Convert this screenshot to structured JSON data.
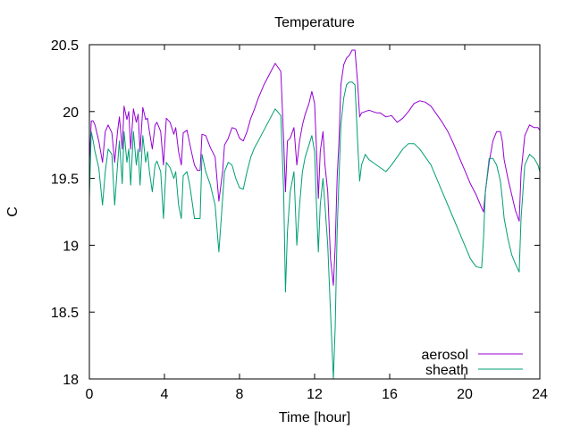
{
  "chart_data": {
    "type": "line",
    "title": "Temperature",
    "xlabel": "Time [hour]",
    "ylabel": "C",
    "xlim": [
      0,
      24
    ],
    "ylim": [
      18,
      20.5
    ],
    "xticks": [
      0,
      4,
      8,
      12,
      16,
      20,
      24
    ],
    "xtick_labels": [
      "0",
      "4",
      "8",
      "12",
      "16",
      "20",
      "24"
    ],
    "yticks": [
      18,
      18.5,
      19,
      19.5,
      20,
      20.5
    ],
    "ytick_labels": [
      "18",
      "18.5",
      "19",
      "19.5",
      "20",
      "20.5"
    ],
    "grid": false,
    "legend_position": "bottom-right",
    "series": [
      {
        "name": "aerosol",
        "color": "#9400d3",
        "x": [
          0,
          0.1,
          0.2,
          0.3,
          0.5,
          0.7,
          0.85,
          1.0,
          1.2,
          1.35,
          1.5,
          1.6,
          1.75,
          1.85,
          2.0,
          2.1,
          2.2,
          2.35,
          2.5,
          2.6,
          2.7,
          2.85,
          3.0,
          3.1,
          3.2,
          3.35,
          3.5,
          3.6,
          3.8,
          3.95,
          4.1,
          4.3,
          4.5,
          4.6,
          4.75,
          4.9,
          5.0,
          5.2,
          5.35,
          5.5,
          5.6,
          5.75,
          5.9,
          6.0,
          6.2,
          6.45,
          6.7,
          6.9,
          7.1,
          7.2,
          7.4,
          7.6,
          7.8,
          8.0,
          8.2,
          8.4,
          8.6,
          8.8,
          9.0,
          9.3,
          9.6,
          9.9,
          10.2,
          10.35,
          10.45,
          10.55,
          10.7,
          10.9,
          11.05,
          11.2,
          11.35,
          11.5,
          11.7,
          11.85,
          12.0,
          12.1,
          12.2,
          12.3,
          12.45,
          12.55,
          12.7,
          12.85,
          13.0,
          13.1,
          13.2,
          13.3,
          13.4,
          13.55,
          13.7,
          13.85,
          14.0,
          14.15,
          14.3,
          14.4,
          14.5,
          14.7,
          14.9,
          15.1,
          15.3,
          15.5,
          15.8,
          16.1,
          16.4,
          16.7,
          17.0,
          17.3,
          17.6,
          17.9,
          18.2,
          18.5,
          18.8,
          19.1,
          19.4,
          19.7,
          20.0,
          20.3,
          20.6,
          20.9,
          21.0,
          21.1,
          21.3,
          21.5,
          21.7,
          21.9,
          22.0,
          22.1,
          22.3,
          22.5,
          22.7,
          22.9,
          23.0,
          23.2,
          23.45,
          23.7,
          23.9,
          24.0
        ],
        "values": [
          19.6,
          19.93,
          19.93,
          19.9,
          19.78,
          19.62,
          19.85,
          19.9,
          19.84,
          19.62,
          19.85,
          19.96,
          19.72,
          20.04,
          19.94,
          20.0,
          19.72,
          20.02,
          19.92,
          19.98,
          19.7,
          20.03,
          19.94,
          19.95,
          19.85,
          19.72,
          19.9,
          19.92,
          19.85,
          19.6,
          19.95,
          19.92,
          19.83,
          19.88,
          19.7,
          19.6,
          19.84,
          19.86,
          19.76,
          19.66,
          19.6,
          19.56,
          19.56,
          19.83,
          19.82,
          19.73,
          19.66,
          19.33,
          19.55,
          19.75,
          19.8,
          19.88,
          19.87,
          19.8,
          19.78,
          19.85,
          19.95,
          20.02,
          20.1,
          20.2,
          20.28,
          20.36,
          20.3,
          19.78,
          19.4,
          19.78,
          19.8,
          19.88,
          19.6,
          19.78,
          19.9,
          19.98,
          20.06,
          20.15,
          20.06,
          19.72,
          19.35,
          19.7,
          19.85,
          19.6,
          19.4,
          18.9,
          18.7,
          19.0,
          19.5,
          19.78,
          20.2,
          20.35,
          20.4,
          20.42,
          20.46,
          20.46,
          20.2,
          19.96,
          19.99,
          20.0,
          20.01,
          20.0,
          19.99,
          19.99,
          19.96,
          19.97,
          19.92,
          19.95,
          20.0,
          20.06,
          20.08,
          20.07,
          20.04,
          19.98,
          19.92,
          19.85,
          19.76,
          19.66,
          19.56,
          19.46,
          19.38,
          19.28,
          19.25,
          19.4,
          19.62,
          19.78,
          19.85,
          19.85,
          19.78,
          19.64,
          19.5,
          19.38,
          19.26,
          19.18,
          19.54,
          19.82,
          19.9,
          19.88,
          19.88,
          19.86
        ]
      },
      {
        "name": "sheath",
        "color": "#009e73",
        "x": [
          0,
          0.1,
          0.2,
          0.3,
          0.5,
          0.7,
          0.85,
          1.0,
          1.2,
          1.35,
          1.5,
          1.6,
          1.75,
          1.85,
          2.0,
          2.1,
          2.2,
          2.35,
          2.5,
          2.6,
          2.7,
          2.85,
          3.0,
          3.1,
          3.2,
          3.35,
          3.5,
          3.6,
          3.8,
          3.95,
          4.1,
          4.3,
          4.5,
          4.6,
          4.75,
          4.9,
          5.0,
          5.2,
          5.35,
          5.5,
          5.6,
          5.75,
          5.9,
          6.0,
          6.2,
          6.45,
          6.7,
          6.9,
          7.1,
          7.2,
          7.4,
          7.6,
          7.8,
          8.0,
          8.2,
          8.4,
          8.6,
          8.8,
          9.0,
          9.3,
          9.6,
          9.9,
          10.2,
          10.35,
          10.45,
          10.55,
          10.7,
          10.9,
          11.05,
          11.2,
          11.35,
          11.5,
          11.7,
          11.85,
          12.0,
          12.1,
          12.2,
          12.3,
          12.45,
          12.55,
          12.7,
          12.85,
          13.0,
          13.1,
          13.2,
          13.3,
          13.4,
          13.55,
          13.7,
          13.85,
          14.0,
          14.15,
          14.3,
          14.4,
          14.5,
          14.7,
          14.9,
          15.1,
          15.3,
          15.5,
          15.8,
          16.1,
          16.4,
          16.7,
          17.0,
          17.3,
          17.6,
          17.9,
          18.2,
          18.5,
          18.8,
          19.1,
          19.4,
          19.7,
          20.0,
          20.3,
          20.6,
          20.9,
          21.0,
          21.1,
          21.3,
          21.5,
          21.7,
          21.9,
          22.0,
          22.1,
          22.3,
          22.5,
          22.7,
          22.9,
          23.0,
          23.2,
          23.45,
          23.7,
          23.9,
          24.0
        ],
        "values": [
          19.35,
          19.85,
          19.78,
          19.7,
          19.58,
          19.3,
          19.55,
          19.72,
          19.68,
          19.3,
          19.6,
          19.78,
          19.46,
          19.85,
          19.62,
          19.72,
          19.45,
          19.85,
          19.6,
          19.72,
          19.45,
          19.82,
          19.62,
          19.7,
          19.55,
          19.4,
          19.6,
          19.63,
          19.55,
          19.2,
          19.62,
          19.58,
          19.5,
          19.55,
          19.3,
          19.2,
          19.52,
          19.55,
          19.45,
          19.3,
          19.2,
          19.2,
          19.2,
          19.68,
          19.55,
          19.45,
          19.3,
          18.95,
          19.35,
          19.55,
          19.62,
          19.6,
          19.5,
          19.43,
          19.42,
          19.55,
          19.66,
          19.73,
          19.78,
          19.86,
          19.94,
          20.02,
          19.97,
          19.4,
          18.65,
          19.1,
          19.4,
          19.55,
          19.0,
          19.3,
          19.55,
          19.66,
          19.75,
          19.82,
          19.7,
          19.3,
          18.95,
          19.3,
          19.5,
          19.3,
          19.0,
          18.5,
          18.0,
          18.4,
          19.1,
          19.5,
          19.9,
          20.1,
          20.2,
          20.22,
          20.22,
          20.2,
          19.75,
          19.48,
          19.6,
          19.68,
          19.64,
          19.62,
          19.6,
          19.58,
          19.55,
          19.6,
          19.66,
          19.72,
          19.76,
          19.76,
          19.72,
          19.66,
          19.6,
          19.5,
          19.4,
          19.3,
          19.2,
          19.1,
          19.0,
          18.9,
          18.84,
          18.83,
          19.05,
          19.4,
          19.65,
          19.65,
          19.6,
          19.48,
          19.35,
          19.2,
          19.05,
          18.93,
          18.86,
          18.8,
          19.2,
          19.6,
          19.68,
          19.65,
          19.6,
          19.55
        ]
      }
    ]
  }
}
